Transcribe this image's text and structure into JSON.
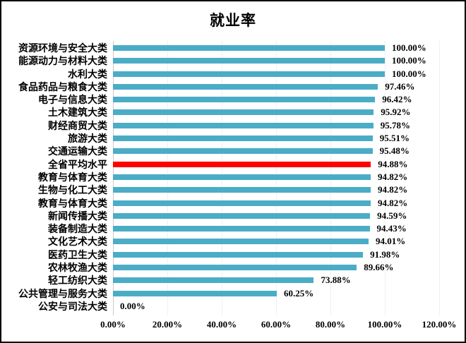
{
  "chart_data": {
    "type": "bar",
    "orientation": "horizontal",
    "title": "就业率",
    "xlabel": "",
    "ylabel": "",
    "grid": "vertical-light",
    "legend": "none",
    "xlim": [
      0,
      120
    ],
    "x_tick_values": [
      0,
      20,
      40,
      60,
      80,
      100,
      120
    ],
    "x_ticks": [
      "0.00%",
      "20.00%",
      "40.00%",
      "60.00%",
      "80.00%",
      "100.00%",
      "120.00%"
    ],
    "bar_color": "#4BACC6",
    "highlight_color": "#FF0000",
    "highlight_index": 9,
    "highlight_category": "全省平均水平",
    "categories": [
      "资源环境与安全大类",
      "能源动力与材料大类",
      "水利大类",
      "食品药品与粮食大类",
      "电子与信息大类",
      "土木建筑大类",
      "财经商贸大类",
      "旅游大类",
      "交通运输大类",
      "全省平均水平",
      "教育与体育大类",
      "生物与化工大类",
      "教育与体育大类",
      "新闻传播大类",
      "装备制造大类",
      "文化艺术大类",
      "医药卫生大类",
      "农林牧渔大类",
      "轻工纺织大类",
      "公共管理与服务大类",
      "公安与司法大类"
    ],
    "values": [
      100.0,
      100.0,
      100.0,
      97.46,
      96.42,
      95.92,
      95.78,
      95.51,
      95.48,
      94.88,
      94.82,
      94.82,
      94.82,
      94.59,
      94.43,
      94.01,
      91.98,
      89.66,
      73.88,
      60.25,
      0.0
    ],
    "value_labels": [
      "100.00%",
      "100.00%",
      "100.00%",
      "97.46%",
      "96.42%",
      "95.92%",
      "95.78%",
      "95.51%",
      "95.48%",
      "94.88%",
      "94.82%",
      "94.82%",
      "94.82%",
      "94.59%",
      "94.43%",
      "94.01%",
      "91.98%",
      "89.66%",
      "73.88%",
      "60.25%",
      "0.00%"
    ]
  }
}
